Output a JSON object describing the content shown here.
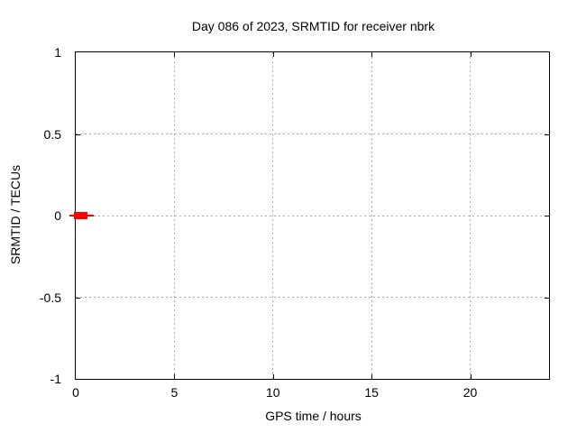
{
  "chart_data": {
    "type": "line",
    "render_style": "gnuplot-xerrorbar",
    "title": "Day 086 of 2023, SRMTID for receiver nbrk",
    "xlabel": "GPS time / hours",
    "ylabel": "SRMTID / TECUs",
    "xlim": [
      0,
      24
    ],
    "ylim": [
      -1,
      1
    ],
    "xticks": {
      "values": [
        0,
        5,
        10,
        15,
        20
      ],
      "labels": [
        "0",
        "5",
        "10",
        "15",
        "20"
      ]
    },
    "yticks": {
      "values": [
        -1,
        -0.5,
        0,
        0.5,
        1
      ],
      "labels": [
        "-1",
        "-0.5",
        "0",
        "0.5",
        "1"
      ]
    },
    "grid": true,
    "legend": "none",
    "colors": {
      "series": "#ff0000",
      "grid": "#aaaaaa",
      "axis": "#000000",
      "background": "#ffffff"
    },
    "series": [
      {
        "name": "SRMTID",
        "color": "#ff0000",
        "points": [
          {
            "y": 0,
            "x_bar": [
              -0.1,
              0.6
            ],
            "x_whisker": [
              -0.3,
              0.9
            ]
          }
        ]
      }
    ]
  }
}
